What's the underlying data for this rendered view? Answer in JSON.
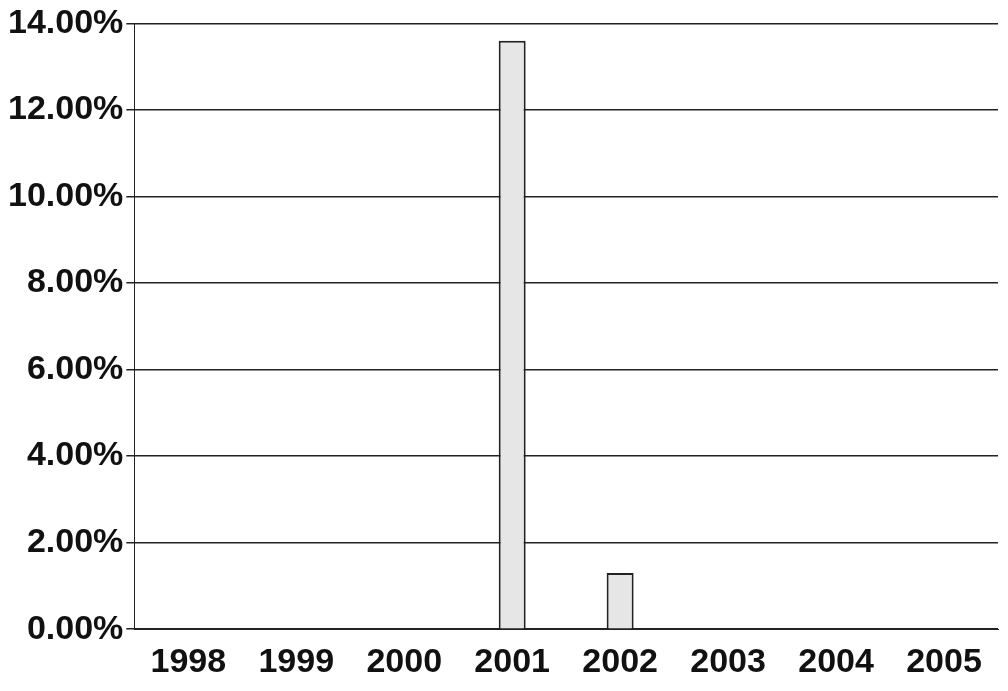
{
  "chart_data": {
    "type": "bar",
    "categories": [
      "1998",
      "1999",
      "2000",
      "2001",
      "2002",
      "2003",
      "2004",
      "2005"
    ],
    "values": [
      0,
      0,
      0,
      13.6,
      1.3,
      0,
      0,
      0
    ],
    "color": "#e6e6e6",
    "ylim": [
      0,
      14
    ],
    "yticks": [
      {
        "value": 0,
        "label": "0.00%"
      },
      {
        "value": 2,
        "label": "2.00%"
      },
      {
        "value": 4,
        "label": "4.00%"
      },
      {
        "value": 6,
        "label": "6.00%"
      },
      {
        "value": 8,
        "label": "8.00%"
      },
      {
        "value": 10,
        "label": "10.00%"
      },
      {
        "value": 12,
        "label": "12.00%"
      },
      {
        "value": 14,
        "label": "14.00%"
      }
    ],
    "grid": "y",
    "legend": false
  }
}
